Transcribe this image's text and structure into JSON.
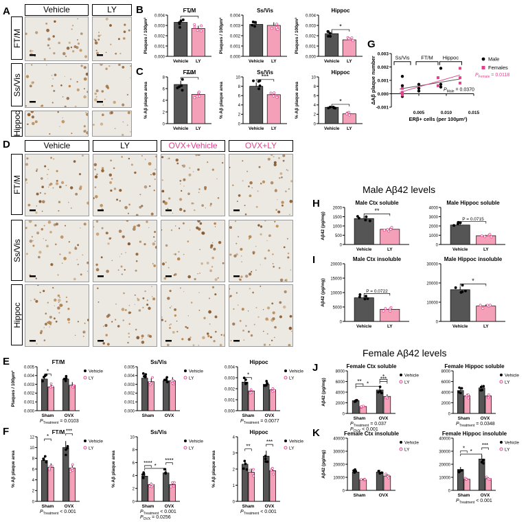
{
  "panel_labels": {
    "A": "A",
    "B": "B",
    "C": "C",
    "D": "D",
    "E": "E",
    "F": "F",
    "G": "G",
    "H": "H",
    "I": "I",
    "J": "J",
    "K": "K"
  },
  "panelA": {
    "cols": [
      "Vehicle",
      "LY"
    ],
    "rows": [
      "FT/M",
      "Ss/Vis",
      "Hippoc"
    ]
  },
  "panelD": {
    "cols": [
      "Vehicle",
      "LY",
      "OVX+Vehicle",
      "OVX+LY"
    ],
    "rows": [
      "FT/M",
      "Ss/Vis",
      "Hippoc"
    ]
  },
  "section_male": "Male Aβ42 levels",
  "section_female": "Female Aβ42 levels",
  "colors": {
    "vehicle": "#555555",
    "ly": "#f4a0b8",
    "ly_point": "#e0438a",
    "female": "#e0438a"
  },
  "chart_data": [
    {
      "id": "B1",
      "type": "bar",
      "title": "FT/M",
      "ylabel": "Plaques / 100µm²",
      "ylim": [
        0,
        0.004
      ],
      "ticks": [
        "0.000",
        "0.001",
        "0.002",
        "0.003",
        "0.004"
      ],
      "categories": [
        "Vehicle",
        "LY"
      ],
      "values": [
        0.0033,
        0.0027
      ],
      "sig": [
        "*"
      ]
    },
    {
      "id": "B2",
      "type": "bar",
      "title": "Ss/Vis",
      "ylabel": "Plaques / 100µm²",
      "ylim": [
        0,
        0.004
      ],
      "ticks": [
        "0.000",
        "0.001",
        "0.002",
        "0.003",
        "0.004"
      ],
      "categories": [
        "Vehicle",
        "LY"
      ],
      "values": [
        0.0031,
        0.003
      ],
      "sig": []
    },
    {
      "id": "B3",
      "type": "bar",
      "title": "Hippoc",
      "ylabel": "Plaques / 100µm²",
      "ylim": [
        0,
        0.004
      ],
      "ticks": [
        "0.000",
        "0.001",
        "0.002",
        "0.003",
        "0.004"
      ],
      "categories": [
        "Vehicle",
        "LY"
      ],
      "values": [
        0.0022,
        0.0016
      ],
      "sig": [
        "*"
      ]
    },
    {
      "id": "C1",
      "type": "bar",
      "title": "FT/M",
      "ylabel": "% Aβ plaque area",
      "ylim": [
        0,
        8
      ],
      "ticks": [
        "0",
        "2",
        "4",
        "6",
        "8"
      ],
      "categories": [
        "Vehicle",
        "LY"
      ],
      "values": [
        6.7,
        5.0
      ],
      "sig": [
        "***"
      ]
    },
    {
      "id": "C2",
      "type": "bar",
      "title": "Ss/Vis",
      "ylabel": "% Aβ plaque area",
      "ylim": [
        0,
        10
      ],
      "ticks": [
        "0",
        "2",
        "4",
        "6",
        "8",
        "10"
      ],
      "categories": [
        "Vehicle",
        "LY"
      ],
      "values": [
        8.0,
        6.2
      ],
      "sig": [
        "***"
      ]
    },
    {
      "id": "C3",
      "type": "bar",
      "title": "Hippoc",
      "ylabel": "% Aβ plaque area",
      "ylim": [
        0,
        10
      ],
      "ticks": [
        "0",
        "2",
        "4",
        "6",
        "8",
        "10"
      ],
      "categories": [
        "Vehicle",
        "LY"
      ],
      "values": [
        3.5,
        2.1
      ],
      "sig": [
        "*"
      ]
    },
    {
      "id": "G",
      "type": "scatter",
      "ylabel": "ΔAβ plaque number",
      "xlabel": "ERβ+ cells (per 100µm²)",
      "xlim": [
        0,
        0.015
      ],
      "ylim": [
        -0.001,
        0.003
      ],
      "xticks": [
        "0.005",
        "0.010",
        "0.015"
      ],
      "yticks": [
        "-0.001",
        "0.000",
        "0.001",
        "0.002",
        "0.003"
      ],
      "regions": [
        "Ss/Vis",
        "FT/M",
        "Hippoc"
      ],
      "legend": [
        "Male",
        "Females"
      ],
      "p_female": "P",
      "p_female_sub": "Female",
      "p_female_val": " = 0.0118",
      "p_male": "P",
      "p_male_sub": "Male",
      "p_male_val": " = 0.0370",
      "male_x": [
        0.002,
        0.002,
        0.002,
        0.002,
        0.005,
        0.005,
        0.005,
        0.009,
        0.009,
        0.009
      ],
      "male_y": [
        0.0013,
        0.0006,
        0.0001,
        -0.0002,
        0.0007,
        0.0004,
        0.0002,
        0.0019,
        0.0007,
        0.0005
      ],
      "female_x": [
        0.002,
        0.002,
        0.002,
        0.0085,
        0.0085,
        0.0125,
        0.0125,
        0.0125
      ],
      "female_y": [
        0.0004,
        0.0001,
        -0.0001,
        0.0012,
        0.0006,
        0.0019,
        0.0012,
        0.0008
      ]
    },
    {
      "id": "E1",
      "type": "bar",
      "title": "FT/M",
      "ylabel": "Plaques / 100µm²",
      "ylim": [
        0,
        0.005
      ],
      "ticks": [
        "0.000",
        "0.001",
        "0.002",
        "0.003",
        "0.004",
        "0.005"
      ],
      "categories": [
        "Sham",
        "OVX"
      ],
      "series": [
        {
          "name": "Vehicle",
          "values": [
            0.0036,
            0.0036
          ]
        },
        {
          "name": "LY",
          "values": [
            0.0027,
            0.0029
          ]
        }
      ],
      "sig": [
        "*"
      ],
      "ptext": "P",
      "psub": "Treatment",
      "pval": " = 0.0103"
    },
    {
      "id": "E2",
      "type": "bar",
      "title": "Ss/Vis",
      "ylabel": "",
      "ylim": [
        0,
        0.005
      ],
      "ticks": [
        "0.000",
        "0.001",
        "0.002",
        "0.003",
        "0.004",
        "0.005"
      ],
      "categories": [
        "Sham",
        "OVX"
      ],
      "series": [
        {
          "name": "Vehicle",
          "values": [
            0.0037,
            0.0034
          ]
        },
        {
          "name": "LY",
          "values": [
            0.0033,
            0.0034
          ]
        }
      ],
      "sig": []
    },
    {
      "id": "E3",
      "type": "bar",
      "title": "Hippoc",
      "ylabel": "",
      "ylim": [
        0,
        0.004
      ],
      "ticks": [
        "0.000",
        "0.001",
        "0.002",
        "0.003",
        "0.004"
      ],
      "categories": [
        "Sham",
        "OVX"
      ],
      "series": [
        {
          "name": "Vehicle",
          "values": [
            0.0026,
            0.0024
          ]
        },
        {
          "name": "LY",
          "values": [
            0.0018,
            0.0019
          ]
        }
      ],
      "sig": [
        "*"
      ],
      "ptext": "P",
      "psub": "Treatment",
      "pval": " = 0.0077"
    },
    {
      "id": "F1",
      "type": "bar",
      "title": "FT/M",
      "ylabel": "% Aβ plaque area",
      "ylim": [
        0,
        12
      ],
      "ticks": [
        "0",
        "2",
        "4",
        "6",
        "8",
        "10",
        "12"
      ],
      "categories": [
        "Sham",
        "OVX"
      ],
      "series": [
        {
          "name": "Vehicle",
          "values": [
            7.6,
            10.0
          ]
        },
        {
          "name": "LY",
          "values": [
            6.3,
            6.2
          ]
        }
      ],
      "sig": [
        "*",
        "***"
      ],
      "ptext": "P",
      "psub": "Treatment",
      "pval": " < 0.001"
    },
    {
      "id": "F2",
      "type": "bar",
      "title": "Ss/Vis",
      "ylabel": "% Aβ plaque area",
      "ylim": [
        0,
        10
      ],
      "ticks": [
        "0",
        "2",
        "4",
        "6",
        "8",
        "10"
      ],
      "categories": [
        "Sham",
        "OVX"
      ],
      "series": [
        {
          "name": "Vehicle",
          "values": [
            3.9,
            4.4
          ]
        },
        {
          "name": "LY",
          "values": [
            2.6,
            2.6
          ]
        }
      ],
      "sig": [
        "*",
        "****",
        "****"
      ],
      "ptext": "P",
      "psub": "Treatment",
      "pval": " < 0.001",
      "ptext2": "P",
      "psub2": "OVX",
      "pval2": " = 0.0256"
    },
    {
      "id": "F3",
      "type": "bar",
      "title": "Hippoc",
      "ylabel": "% Aβ plaque area",
      "ylim": [
        0,
        4
      ],
      "ticks": [
        "0",
        "1",
        "2",
        "3",
        "4"
      ],
      "categories": [
        "Sham",
        "OVX"
      ],
      "series": [
        {
          "name": "Vehicle",
          "values": [
            2.3,
            2.8
          ]
        },
        {
          "name": "LY",
          "values": [
            1.8,
            1.9
          ]
        }
      ],
      "sig": [
        "**",
        "***"
      ],
      "ptext": "P",
      "psub": "Treatment",
      "pval": " < 0.001"
    },
    {
      "id": "H1",
      "type": "bar",
      "title": "Male Ctx soluble",
      "ylabel": "Aβ42 (pg/mg)",
      "ylim": [
        0,
        2000
      ],
      "ticks": [
        "0",
        "500",
        "1000",
        "1500",
        "2000"
      ],
      "categories": [
        "Vehicle",
        "LY"
      ],
      "values": [
        1400,
        820
      ],
      "sig": [
        "**"
      ]
    },
    {
      "id": "H2",
      "type": "bar",
      "title": "Male Hippoc soluble",
      "ylabel": "",
      "ylim": [
        0,
        4000
      ],
      "ticks": [
        "0",
        "1000",
        "2000",
        "3000",
        "4000"
      ],
      "categories": [
        "Vehicle",
        "LY"
      ],
      "values": [
        2100,
        950
      ],
      "sig": [
        "P = 0.0715"
      ]
    },
    {
      "id": "I1",
      "type": "bar",
      "title": "Male Ctx insoluble",
      "ylabel": "Aβ42 (pg/mg)",
      "ylim": [
        0,
        20000
      ],
      "ticks": [
        "0",
        "5000",
        "10000",
        "15000",
        "20000"
      ],
      "categories": [
        "Vehicle",
        "LY"
      ],
      "values": [
        8200,
        4200
      ],
      "sig": [
        "P = 0.0722"
      ]
    },
    {
      "id": "I2",
      "type": "bar",
      "title": "Male Hippoc insoluble",
      "ylabel": "",
      "ylim": [
        0,
        30000
      ],
      "ticks": [
        "0",
        "10000",
        "20000",
        "30000"
      ],
      "categories": [
        "Vehicle",
        "LY"
      ],
      "values": [
        16500,
        8000
      ],
      "sig": [
        "*"
      ]
    },
    {
      "id": "J1",
      "type": "bar",
      "title": "Female Ctx soluble",
      "ylabel": "Aβ42 (pg/mg)",
      "ylim": [
        0,
        8000
      ],
      "ticks": [
        "0",
        "2000",
        "4000",
        "6000",
        "8000"
      ],
      "categories": [
        "Sham",
        "OVX"
      ],
      "series": [
        {
          "name": "Vehicle",
          "values": [
            2400,
            4400
          ]
        },
        {
          "name": "LY",
          "values": [
            1300,
            3200
          ]
        }
      ],
      "sig": [
        "*",
        "**",
        "***",
        "*"
      ],
      "ptext": "P",
      "psub": "Treatment",
      "pval": " = 0.037",
      "ptext2": "P",
      "psub2": "OVX",
      "pval2": " < 0.001"
    },
    {
      "id": "J2",
      "type": "bar",
      "title": "Female Hippoc soluble",
      "ylabel": "",
      "ylim": [
        0,
        8000
      ],
      "ticks": [
        "0",
        "2000",
        "4000",
        "6000",
        "8000"
      ],
      "categories": [
        "Sham",
        "OVX"
      ],
      "series": [
        {
          "name": "Vehicle",
          "values": [
            4300,
            4800
          ]
        },
        {
          "name": "LY",
          "values": [
            3300,
            3300
          ]
        }
      ],
      "sig": [],
      "ptext": "P",
      "psub": "Treatment",
      "pval": " = 0.0348"
    },
    {
      "id": "K1",
      "type": "bar",
      "title": "Female Ctx insoluble",
      "ylabel": "Aβ42 (pg/mg)",
      "ylim": [
        0,
        40000
      ],
      "ticks": [
        "0",
        "10000",
        "20000",
        "30000",
        "40000"
      ],
      "categories": [
        "Sham",
        "OVX"
      ],
      "series": [
        {
          "name": "Vehicle",
          "values": [
            14000,
            14000
          ]
        },
        {
          "name": "LY",
          "values": [
            8000,
            11000
          ]
        }
      ],
      "sig": []
    },
    {
      "id": "K2",
      "type": "bar",
      "title": "Female Hippoc insoluble",
      "ylabel": "",
      "ylim": [
        0,
        40000
      ],
      "ticks": [
        "0",
        "10000",
        "20000",
        "30000",
        "40000"
      ],
      "categories": [
        "Sham",
        "OVX"
      ],
      "series": [
        {
          "name": "Vehicle",
          "values": [
            16000,
            24000
          ]
        },
        {
          "name": "LY",
          "values": [
            8500,
            9000
          ]
        }
      ],
      "sig": [
        "*",
        "*",
        "***"
      ],
      "ptext": "P",
      "psub": "Treatment",
      "pval": " < 0.001"
    }
  ],
  "legend": {
    "vehicle": "Vehicle",
    "ly": "LY"
  }
}
